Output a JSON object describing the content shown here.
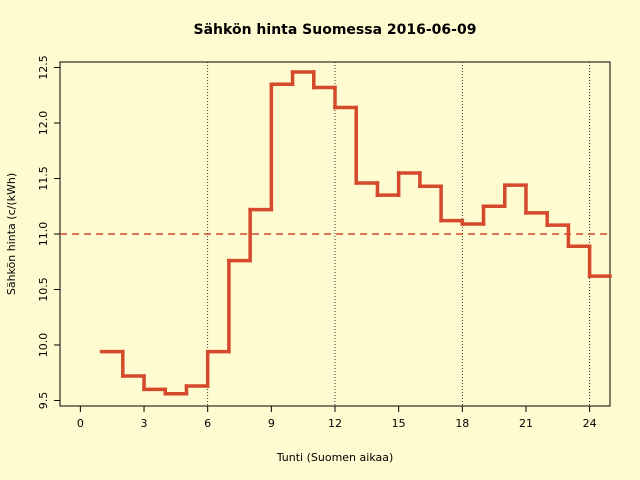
{
  "chart_data": {
    "type": "step",
    "title": "Sähkön hinta Suomessa 2016-06-09",
    "x_label": "Tunti (Suomen aikaa)",
    "y_label": "Sähkön hinta (c/(kWh)",
    "x": [
      1,
      2,
      3,
      4,
      5,
      6,
      7,
      8,
      9,
      10,
      11,
      12,
      13,
      14,
      15,
      16,
      17,
      18,
      19,
      20,
      21,
      22,
      23,
      24
    ],
    "values": [
      9.94,
      9.72,
      9.6,
      9.56,
      9.63,
      9.94,
      10.76,
      11.22,
      12.35,
      12.46,
      12.32,
      12.14,
      11.46,
      11.35,
      11.55,
      11.43,
      11.12,
      11.09,
      11.25,
      11.44,
      11.19,
      11.08,
      10.89,
      10.62
    ],
    "color": "#d5492c",
    "xlim": [
      -0.96,
      24.96
    ],
    "ylim": [
      9.45,
      12.55
    ],
    "xticks": [
      0,
      3,
      6,
      9,
      12,
      15,
      18,
      21,
      24
    ],
    "yticks": [
      {
        "value": 9.5,
        "label": "9.5"
      },
      {
        "value": 10,
        "label": "10.0"
      },
      {
        "value": 10.5,
        "label": "10.5"
      },
      {
        "value": 11,
        "label": "11.0"
      },
      {
        "value": 11.5,
        "label": "11.5"
      },
      {
        "value": 12,
        "label": "12.0"
      },
      {
        "value": 12.5,
        "label": "12.5"
      }
    ],
    "reference_line": 11,
    "vlines": [
      6,
      12,
      18,
      24
    ]
  }
}
